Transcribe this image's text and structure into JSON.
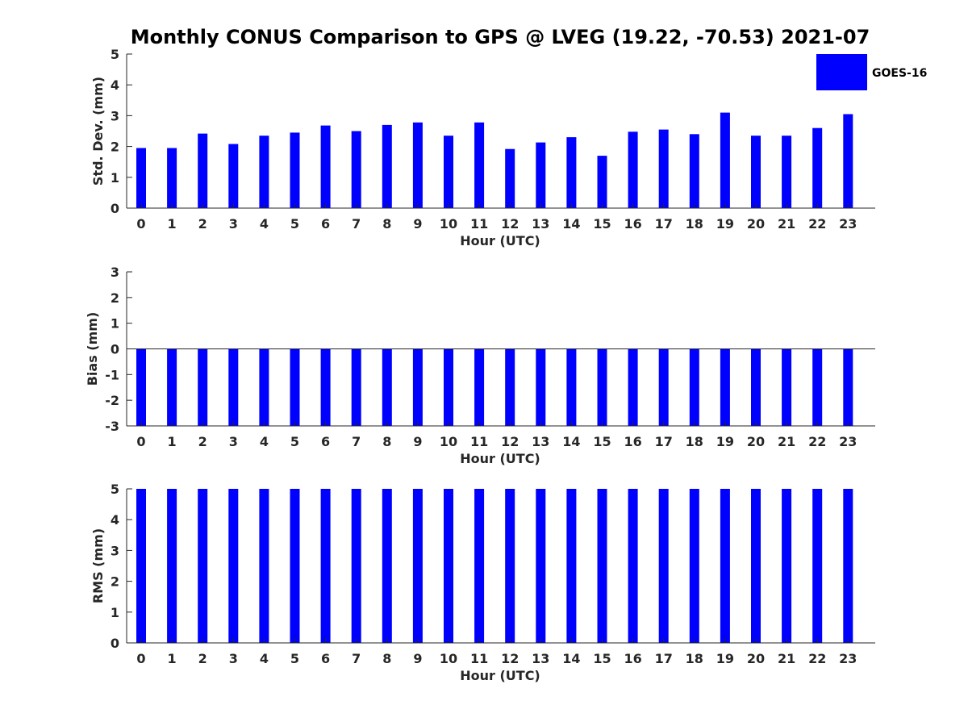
{
  "title": "Monthly CONUS Comparison to GPS @ LVEG (19.22, -70.53) 2021-07",
  "legend": {
    "label": "GOES-16",
    "color": "#0000ff",
    "placement": "top-right"
  },
  "chart_data": [
    {
      "type": "bar",
      "xlabel": "Hour (UTC)",
      "ylabel": "Std. Dev. (mm)",
      "ylim": [
        0,
        5
      ],
      "yticks": [
        "0",
        "1",
        "2",
        "3",
        "4",
        "5"
      ],
      "categories": [
        "0",
        "1",
        "2",
        "3",
        "4",
        "5",
        "6",
        "7",
        "8",
        "9",
        "10",
        "11",
        "12",
        "13",
        "14",
        "15",
        "16",
        "17",
        "18",
        "19",
        "20",
        "21",
        "22",
        "23"
      ],
      "series": [
        {
          "name": "GOES-16",
          "color": "#0000ff",
          "values": [
            1.95,
            1.95,
            2.42,
            2.08,
            2.35,
            2.45,
            2.68,
            2.5,
            2.7,
            2.78,
            2.35,
            2.78,
            1.92,
            2.13,
            2.3,
            1.7,
            2.48,
            2.55,
            2.4,
            3.1,
            2.35,
            2.35,
            2.6,
            3.05
          ]
        }
      ],
      "grid": false
    },
    {
      "type": "bar",
      "xlabel": "Hour (UTC)",
      "ylabel": "Bias (mm)",
      "ylim": [
        -3,
        3
      ],
      "yticks": [
        "-3",
        "-2",
        "-1",
        "0",
        "1",
        "2",
        "3"
      ],
      "baseline": 0,
      "categories": [
        "0",
        "1",
        "2",
        "3",
        "4",
        "5",
        "6",
        "7",
        "8",
        "9",
        "10",
        "11",
        "12",
        "13",
        "14",
        "15",
        "16",
        "17",
        "18",
        "19",
        "20",
        "21",
        "22",
        "23"
      ],
      "series": [
        {
          "name": "GOES-16",
          "color": "#0000ff",
          "values": [
            -3,
            -3,
            -3,
            -3,
            -3,
            -3,
            -3,
            -3,
            -3,
            -3,
            -3,
            -3,
            -3,
            -3,
            -3,
            -3,
            -3,
            -3,
            -3,
            -3,
            -3,
            -3,
            -3,
            -3
          ]
        }
      ],
      "grid": false
    },
    {
      "type": "bar",
      "xlabel": "Hour (UTC)",
      "ylabel": "RMS (mm)",
      "ylim": [
        0,
        5
      ],
      "yticks": [
        "0",
        "1",
        "2",
        "3",
        "4",
        "5"
      ],
      "categories": [
        "0",
        "1",
        "2",
        "3",
        "4",
        "5",
        "6",
        "7",
        "8",
        "9",
        "10",
        "11",
        "12",
        "13",
        "14",
        "15",
        "16",
        "17",
        "18",
        "19",
        "20",
        "21",
        "22",
        "23"
      ],
      "series": [
        {
          "name": "GOES-16",
          "color": "#0000ff",
          "values": [
            5,
            5,
            5,
            5,
            5,
            5,
            5,
            5,
            5,
            5,
            5,
            5,
            5,
            5,
            5,
            5,
            5,
            5,
            5,
            5,
            5,
            5,
            5,
            5
          ]
        }
      ],
      "grid": false
    }
  ]
}
